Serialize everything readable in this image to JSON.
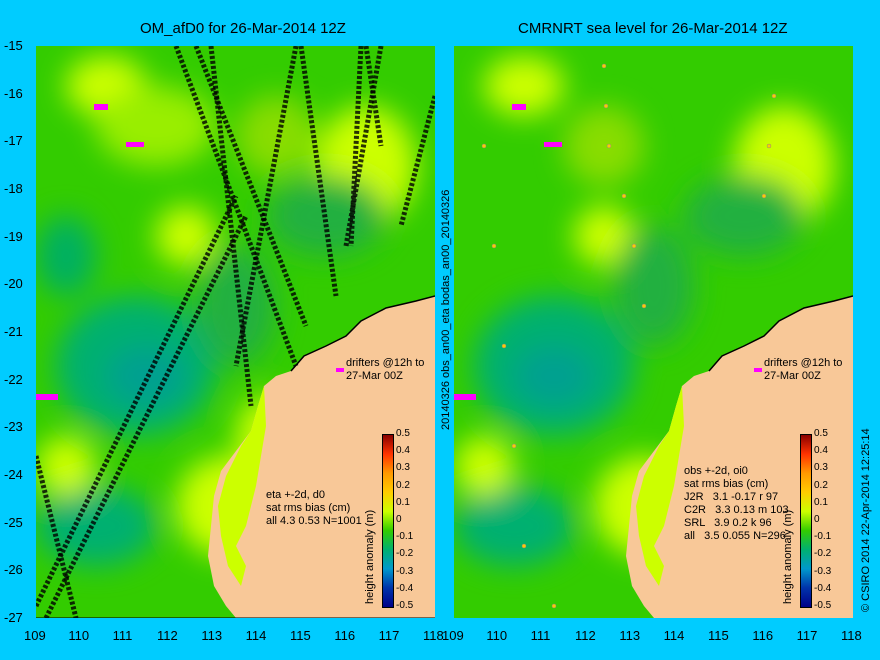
{
  "left_panel": {
    "title": "OM_afD0 for 26-Mar-2014 12Z",
    "legend_lines": [
      "eta +-2d, d0",
      "sat rms bias (cm)",
      "all 4.3 0.53 N=1001"
    ],
    "drifters_label": [
      "drifters @12h to",
      "27-Mar 00Z"
    ]
  },
  "right_panel": {
    "title": "CMRNRT sea level  for 26-Mar-2014 12Z",
    "legend_lines": [
      "obs +-2d, oi0",
      "sat rms bias (cm)",
      "J2R   3.1 -0.17 r 97",
      "C2R   3.3 0.13 m 103",
      "SRL   3.9 0.2 k 96",
      "all   3.5 0.055 N=296"
    ],
    "drifters_label": [
      "drifters @12h to",
      "27-Mar 00Z"
    ]
  },
  "middle_label": "20140326 obs_an00_eta    bodas_an00_20140326",
  "right_edge_label": "© CSIRO 2014   22-Apr-2014 12:25:14",
  "colorbar": {
    "label": "height anomaly (m)",
    "ticks": [
      "0.5",
      "0.4",
      "0.3",
      "0.2",
      "0.1",
      "0",
      "-0.1",
      "-0.2",
      "-0.3",
      "-0.4",
      "-0.5"
    ]
  },
  "axes": {
    "x_ticks": [
      "109",
      "110",
      "111",
      "112",
      "113",
      "114",
      "115",
      "116",
      "117",
      "118"
    ],
    "y_ticks": [
      "-15",
      "-16",
      "-17",
      "-18",
      "-19",
      "-20",
      "-21",
      "-22",
      "-23",
      "-24",
      "-25",
      "-26",
      "-27"
    ],
    "x_range": [
      109,
      118
    ],
    "y_range": [
      -27,
      -15
    ]
  },
  "colors": {
    "background": "#00ccff",
    "land": "#f8c898",
    "field_base": "#33cc00",
    "field_high": "#ccff00",
    "field_low": "#00b080",
    "drifter": "#ff00ff"
  }
}
